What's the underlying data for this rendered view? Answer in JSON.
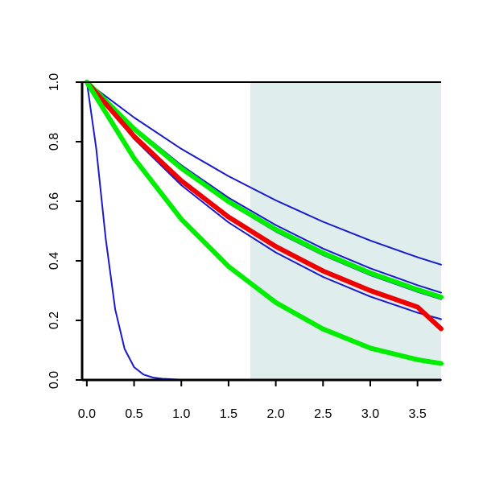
{
  "chart_data": {
    "type": "line",
    "title": "",
    "xlabel": "",
    "ylabel": "",
    "xlim": [
      -0.05,
      3.75
    ],
    "ylim": [
      0.0,
      1.0
    ],
    "x_ticks": [
      0.0,
      0.5,
      1.0,
      1.5,
      2.0,
      2.5,
      3.0,
      3.5
    ],
    "x_tick_labels": [
      "0.0",
      "0.5",
      "1.0",
      "1.5",
      "2.0",
      "2.5",
      "3.0",
      "3.5"
    ],
    "y_ticks": [
      0.0,
      0.2,
      0.4,
      0.6,
      0.8,
      1.0
    ],
    "y_tick_labels": [
      "0.0",
      "0.2",
      "0.4",
      "0.6",
      "0.8",
      "1.0"
    ],
    "grid": false,
    "legend": "none",
    "shaded_region": {
      "x_from": 1.73,
      "x_to": 3.75,
      "color": "#e0eded"
    },
    "series": [
      {
        "color": "#1a1acc",
        "width": "thin",
        "x": [
          0.0,
          0.1,
          0.2,
          0.3,
          0.4,
          0.5,
          0.6,
          0.7,
          0.8,
          1.0,
          1.2,
          1.5,
          2.0,
          3.75
        ],
        "y": [
          1.0,
          0.776,
          0.475,
          0.237,
          0.104,
          0.043,
          0.018,
          0.008,
          0.004,
          0.001,
          0.0,
          0.0,
          0.0,
          0.0
        ]
      },
      {
        "color": "#1a1acc",
        "width": "thin",
        "x": [
          0.0,
          0.5,
          1.0,
          1.5,
          2.0,
          2.5,
          3.0,
          3.5,
          3.75
        ],
        "y": [
          1.0,
          0.881,
          0.776,
          0.684,
          0.603,
          0.531,
          0.468,
          0.412,
          0.387
        ]
      },
      {
        "color": "#1a1acc",
        "width": "thin",
        "x": [
          0.0,
          0.5,
          1.0,
          1.5,
          2.0,
          2.5,
          3.0,
          3.5,
          3.75
        ],
        "y": [
          1.0,
          0.849,
          0.721,
          0.612,
          0.52,
          0.441,
          0.375,
          0.318,
          0.293
        ]
      },
      {
        "color": "#1a1acc",
        "width": "thin",
        "x": [
          0.0,
          0.5,
          1.0,
          1.5,
          2.0,
          2.5,
          3.0,
          3.5,
          3.75
        ],
        "y": [
          1.0,
          0.84,
          0.706,
          0.593,
          0.498,
          0.419,
          0.352,
          0.296,
          0.271
        ]
      },
      {
        "color": "#1a1acc",
        "width": "thin",
        "x": [
          0.0,
          0.5,
          1.0,
          1.5,
          2.0,
          2.5,
          3.0,
          3.5,
          3.75
        ],
        "y": [
          1.0,
          0.809,
          0.654,
          0.529,
          0.428,
          0.346,
          0.28,
          0.226,
          0.204
        ]
      },
      {
        "color": "#00ee00",
        "width": "thick",
        "x": [
          0.0,
          0.5,
          1.0,
          1.5,
          2.0,
          2.5,
          3.0,
          3.5,
          3.75
        ],
        "y": [
          1.0,
          0.843,
          0.711,
          0.599,
          0.505,
          0.426,
          0.359,
          0.303,
          0.278
        ]
      },
      {
        "color": "#ee0000",
        "width": "thick",
        "x": [
          0.0,
          0.5,
          1.0,
          1.5,
          2.0,
          2.5,
          3.0,
          3.5,
          3.75
        ],
        "y": [
          1.0,
          0.818,
          0.669,
          0.547,
          0.448,
          0.366,
          0.3,
          0.245,
          0.172
        ]
      },
      {
        "color": "#00ee00",
        "width": "thick",
        "x": [
          0.0,
          0.5,
          1.0,
          1.5,
          2.0,
          2.5,
          3.0,
          3.5,
          3.75
        ],
        "y": [
          1.0,
          0.744,
          0.54,
          0.381,
          0.26,
          0.171,
          0.107,
          0.068,
          0.055
        ]
      }
    ]
  }
}
